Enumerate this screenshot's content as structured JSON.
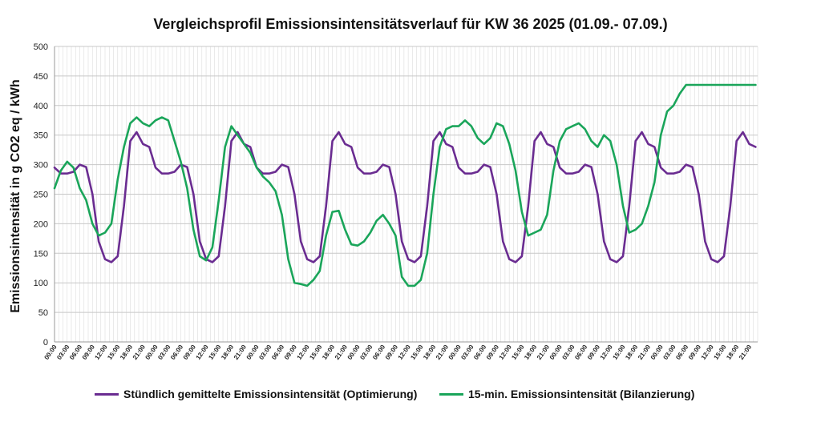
{
  "chart_data": {
    "type": "line",
    "title": "Vergleichsprofil Emissionsintensitätsverlauf für KW 36 2025 (01.09.- 07.09.)",
    "xlabel": "",
    "ylabel": "Emissionsintensität in g CO2 eq / kWh",
    "ylim": [
      0,
      500
    ],
    "yticks": [
      0,
      50,
      100,
      150,
      200,
      250,
      300,
      350,
      400,
      450,
      500
    ],
    "grid": true,
    "legend_position": "bottom",
    "x_range_hours": [
      0,
      167
    ],
    "x_ticks": [
      "00:00",
      "03:00",
      "06:00",
      "09:00",
      "12:00",
      "15:00",
      "18:00",
      "21:00",
      "00:00",
      "03:00",
      "06:00",
      "09:00",
      "12:00",
      "15:00",
      "18:00",
      "21:00",
      "00:00",
      "03:00",
      "06:00",
      "09:00",
      "12:00",
      "15:00",
      "18:00",
      "21:00",
      "00:00",
      "03:00",
      "06:00",
      "09:00",
      "12:00",
      "15:00",
      "18:00",
      "21:00",
      "00:00",
      "03:00",
      "06:00",
      "09:00",
      "12:00",
      "15:00",
      "18:00",
      "21:00",
      "00:00",
      "03:00",
      "06:00",
      "09:00",
      "12:00",
      "15:00",
      "18:00",
      "21:00",
      "00:00",
      "03:00",
      "06:00",
      "09:00",
      "12:00",
      "15:00",
      "18:00",
      "21:00"
    ],
    "series": [
      {
        "name": "Stündlich gemittelte Emissionsintensität (Optimierung)",
        "color": "#6a2c91",
        "x": [
          0,
          1.5,
          3,
          4.5,
          6,
          7.5,
          9,
          10.5,
          12,
          13.5,
          15,
          16.5,
          18,
          19.5,
          21,
          22.5,
          24,
          25.5,
          27,
          28.5,
          30,
          31.5,
          33,
          34.5,
          36,
          37.5,
          39,
          40.5,
          42,
          43.5,
          45,
          46.5,
          48,
          49.5,
          51,
          52.5,
          54,
          55.5,
          57,
          58.5,
          60,
          61.5,
          63,
          64.5,
          66,
          67.5,
          69,
          70.5,
          72,
          73.5,
          75,
          76.5,
          78,
          79.5,
          81,
          82.5,
          84,
          85.5,
          87,
          88.5,
          90,
          91.5,
          93,
          94.5,
          96,
          97.5,
          99,
          100.5,
          102,
          103.5,
          105,
          106.5,
          108,
          109.5,
          111,
          112.5,
          114,
          115.5,
          117,
          118.5,
          120,
          121.5,
          123,
          124.5,
          126,
          127.5,
          129,
          130.5,
          132,
          133.5,
          135,
          136.5,
          138,
          139.5,
          141,
          142.5,
          144,
          145.5,
          147,
          148.5,
          150,
          151.5,
          153,
          154.5,
          156,
          157.5,
          159,
          160.5,
          162,
          163.5,
          165,
          166.5
        ],
        "y": [
          295,
          285,
          285,
          288,
          300,
          296,
          250,
          170,
          140,
          135,
          145,
          230,
          340,
          355,
          335,
          330,
          295,
          285,
          285,
          288,
          300,
          296,
          250,
          170,
          140,
          135,
          145,
          230,
          340,
          355,
          335,
          330,
          295,
          285,
          285,
          288,
          300,
          296,
          250,
          170,
          140,
          135,
          145,
          230,
          340,
          355,
          335,
          330,
          295,
          285,
          285,
          288,
          300,
          296,
          250,
          170,
          140,
          135,
          145,
          230,
          340,
          355,
          335,
          330,
          295,
          285,
          285,
          288,
          300,
          296,
          250,
          170,
          140,
          135,
          145,
          230,
          340,
          355,
          335,
          330,
          295,
          285,
          285,
          288,
          300,
          296,
          250,
          170,
          140,
          135,
          145,
          230,
          340,
          355,
          335,
          330,
          295,
          285,
          285,
          288,
          300,
          296,
          250,
          170,
          140,
          135,
          145,
          230,
          340,
          355,
          335,
          330
        ]
      },
      {
        "name": "15-min. Emissionsintensität (Bilanzierung)",
        "color": "#1aa55a",
        "x": [
          0,
          1.5,
          3,
          4.5,
          6,
          7.5,
          9,
          10.5,
          12,
          13.5,
          15,
          16.5,
          18,
          19.5,
          21,
          22.5,
          24,
          25.5,
          27,
          28.5,
          30,
          31.5,
          33,
          34.5,
          36,
          37.5,
          39,
          40.5,
          42,
          43.5,
          45,
          46.5,
          48,
          49.5,
          51,
          52.5,
          54,
          55.5,
          57,
          58.5,
          60,
          61.5,
          63,
          64.5,
          66,
          67.5,
          69,
          70.5,
          72,
          73.5,
          75,
          76.5,
          78,
          79.5,
          81,
          82.5,
          84,
          85.5,
          87,
          88.5,
          90,
          91.5,
          93,
          94.5,
          96,
          97.5,
          99,
          100.5,
          102,
          103.5,
          105,
          106.5,
          108,
          109.5,
          111,
          112.5,
          114,
          115.5,
          117,
          118.5,
          120,
          121.5,
          123,
          124.5,
          126,
          127.5,
          129,
          130.5,
          132,
          133.5,
          135,
          136.5,
          138,
          139.5,
          141,
          142.5,
          144,
          145.5,
          147,
          148.5,
          150,
          151.5,
          153,
          154.5,
          156,
          157.5,
          159,
          160.5,
          162,
          163.5,
          165,
          166.5
        ],
        "y": [
          260,
          290,
          305,
          295,
          260,
          240,
          200,
          180,
          185,
          200,
          275,
          330,
          370,
          380,
          370,
          365,
          375,
          380,
          375,
          340,
          305,
          260,
          190,
          145,
          138,
          160,
          240,
          330,
          365,
          350,
          335,
          320,
          295,
          280,
          270,
          255,
          215,
          140,
          100,
          98,
          95,
          105,
          120,
          180,
          220,
          222,
          190,
          165,
          163,
          170,
          185,
          205,
          215,
          200,
          180,
          110,
          95,
          95,
          105,
          150,
          250,
          330,
          360,
          365,
          365,
          375,
          365,
          345,
          335,
          345,
          370,
          365,
          335,
          290,
          220,
          180,
          185,
          190,
          215,
          290,
          340,
          360,
          365,
          370,
          360,
          340,
          330,
          350,
          340,
          300,
          230,
          185,
          190,
          200,
          230,
          270,
          350,
          390,
          400,
          420,
          435,
          435,
          435,
          435,
          435,
          435,
          435,
          435,
          435,
          435,
          435,
          435
        ]
      }
    ]
  }
}
